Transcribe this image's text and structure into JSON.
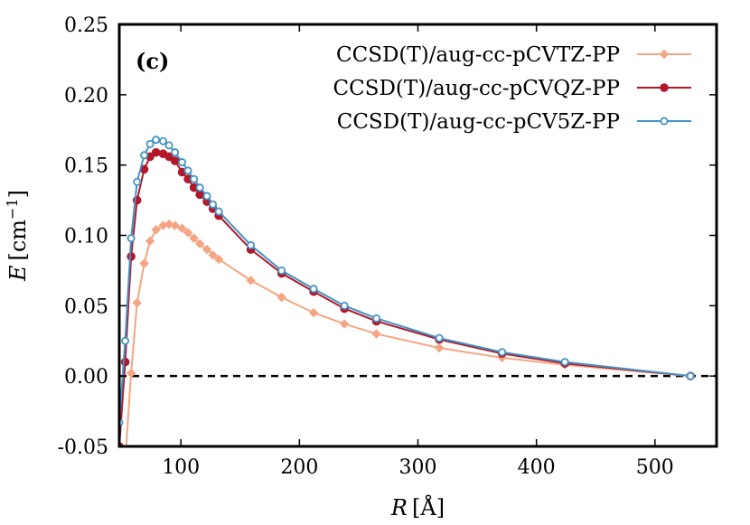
{
  "chart_data": {
    "type": "line",
    "panel_label": "(c)",
    "xlabel_var": "R",
    "xlabel_unit": "[Å]",
    "ylabel_var": "E",
    "ylabel_unit": "[cm",
    "ylabel_exp": "−1",
    "ylabel_close": "]",
    "xlim": [
      48,
      552
    ],
    "ylim": [
      -0.05,
      0.25
    ],
    "xticks": [
      100,
      200,
      300,
      400,
      500
    ],
    "yticks": [
      -0.05,
      0.0,
      0.05,
      0.1,
      0.15,
      0.2,
      0.25
    ],
    "ytick_labels": [
      "-0.05",
      "0.00",
      "0.05",
      "0.10",
      "0.15",
      "0.20",
      "0.25"
    ],
    "zero_line": true,
    "grid": false,
    "legend_position": "top-right",
    "series": [
      {
        "name": "CCSD(T)/aug-cc-pCVTZ-PP",
        "color": "#f4a582",
        "marker": "diamond",
        "x": [
          53,
          58,
          63,
          69,
          74,
          79,
          85,
          90,
          95,
          101,
          106,
          111,
          116,
          122,
          127,
          132,
          159,
          185,
          212,
          238,
          265,
          318,
          371,
          424,
          530
        ],
        "y": [
          -0.06,
          0.002,
          0.052,
          0.08,
          0.096,
          0.104,
          0.107,
          0.108,
          0.107,
          0.105,
          0.102,
          0.098,
          0.094,
          0.09,
          0.086,
          0.083,
          0.068,
          0.056,
          0.045,
          0.037,
          0.03,
          0.02,
          0.013,
          0.008,
          0.0
        ]
      },
      {
        "name": "CCSD(T)/aug-cc-pCVQZ-PP",
        "color": "#b2182b",
        "marker": "circle",
        "x": [
          48,
          53,
          58,
          63,
          69,
          74,
          79,
          85,
          90,
          95,
          101,
          106,
          111,
          116,
          122,
          127,
          132,
          159,
          185,
          212,
          238,
          265,
          318,
          371,
          424,
          530
        ],
        "y": [
          -0.05,
          0.01,
          0.085,
          0.125,
          0.147,
          0.156,
          0.159,
          0.158,
          0.156,
          0.153,
          0.145,
          0.14,
          0.134,
          0.129,
          0.124,
          0.119,
          0.114,
          0.09,
          0.073,
          0.06,
          0.048,
          0.039,
          0.026,
          0.016,
          0.009,
          0.0
        ]
      },
      {
        "name": "CCSD(T)/aug-cc-pCV5Z-PP",
        "color": "#4393c3",
        "marker": "open-circle",
        "x": [
          48,
          53,
          58,
          63,
          69,
          74,
          79,
          85,
          90,
          95,
          101,
          106,
          111,
          116,
          122,
          127,
          132,
          159,
          185,
          212,
          238,
          265,
          318,
          371,
          424,
          530
        ],
        "y": [
          -0.033,
          0.025,
          0.098,
          0.138,
          0.157,
          0.165,
          0.168,
          0.167,
          0.164,
          0.159,
          0.152,
          0.146,
          0.14,
          0.134,
          0.128,
          0.122,
          0.117,
          0.093,
          0.075,
          0.062,
          0.05,
          0.041,
          0.027,
          0.017,
          0.01,
          0.0
        ]
      }
    ]
  }
}
